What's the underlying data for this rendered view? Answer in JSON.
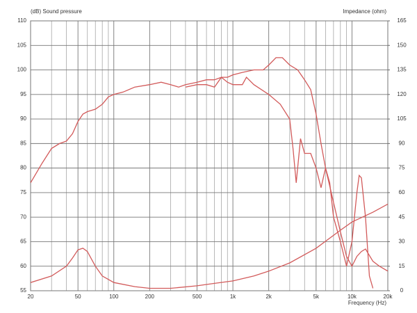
{
  "chart_data": {
    "type": "line",
    "y_label": "(dB)  Sound pressure",
    "y2_label": "Impedance  (ohm)",
    "x_label": "Frequency  (Hz)",
    "x_log": true,
    "grid": true,
    "xlim": [
      20,
      20000
    ],
    "xticks": [
      20,
      50,
      100,
      200,
      500,
      {
        "value": 1000,
        "label": "1k"
      },
      {
        "value": 2000,
        "label": "2k"
      },
      {
        "value": 5000,
        "label": "5k"
      },
      {
        "value": 10000,
        "label": "10k"
      },
      {
        "value": 20000,
        "label": "20k"
      }
    ],
    "x_minor_ticks": [
      30,
      40,
      60,
      70,
      80,
      90,
      300,
      400,
      600,
      700,
      800,
      900,
      3000,
      4000,
      6000,
      7000,
      8000,
      9000
    ],
    "ylim": [
      55,
      110
    ],
    "yticks": [
      55,
      60,
      65,
      70,
      75,
      80,
      85,
      90,
      95,
      100,
      105,
      110
    ],
    "y2lim": [
      0,
      165
    ],
    "y2ticks": [
      0,
      15,
      30,
      45,
      60,
      75,
      90,
      105,
      120,
      135,
      150,
      165
    ],
    "series": [
      {
        "color": "#d25a5a",
        "x": [
          20,
          25,
          30,
          35,
          40,
          45,
          50,
          55,
          60,
          70,
          80,
          90,
          100,
          120,
          150,
          200,
          250,
          300,
          350,
          400,
          500,
          600,
          700,
          800,
          900,
          1000,
          1200,
          1500,
          1800,
          2000,
          2300,
          2600,
          3000,
          3500,
          4000,
          4500,
          5000,
          5500,
          6000,
          7000,
          8000,
          9000,
          10000,
          11000,
          12000,
          13000,
          15000,
          17000,
          20000
        ],
        "values": [
          77,
          81,
          84,
          85,
          85.5,
          87,
          89.5,
          91,
          91.5,
          92,
          93,
          94.5,
          95,
          95.5,
          96.5,
          97,
          97.5,
          97,
          96.5,
          97,
          97.5,
          98,
          98,
          98.5,
          98.5,
          99,
          99.5,
          100,
          100,
          101,
          102.5,
          102.5,
          101,
          100,
          98,
          96,
          91,
          85,
          80,
          73,
          67,
          62,
          60,
          62,
          63,
          63.5,
          61,
          60,
          59
        ]
      },
      {
        "color": "#d25a5a",
        "x": [
          400,
          500,
          600,
          700,
          800,
          900,
          1000,
          1200,
          1300,
          1500,
          2000,
          2500,
          3000,
          3200,
          3400,
          3700,
          4000,
          4500,
          5000,
          5500,
          6000,
          6500,
          7000,
          8000,
          9000,
          10000,
          11000,
          11500,
          12000,
          13000,
          14000,
          15000
        ],
        "values": [
          96.5,
          97,
          97,
          96.5,
          98.5,
          97.5,
          97,
          97,
          98.5,
          97,
          95,
          93,
          90,
          84,
          77,
          86,
          83,
          83,
          80,
          76,
          80,
          77,
          70,
          65,
          60,
          65,
          75,
          78.5,
          78,
          70,
          58,
          55.5
        ]
      },
      {
        "color": "#d25a5a",
        "axis": "y2",
        "x": [
          20,
          30,
          40,
          45,
          50,
          55,
          60,
          70,
          80,
          100,
          150,
          200,
          300,
          500,
          700,
          1000,
          1500,
          2000,
          3000,
          5000,
          8000,
          10000,
          15000,
          20000
        ],
        "values": [
          5,
          9,
          15,
          20,
          25,
          26,
          24,
          15,
          9,
          5,
          2.5,
          1.5,
          1.5,
          3,
          4.5,
          6,
          9,
          12,
          17,
          26,
          37,
          42,
          48,
          53
        ]
      }
    ]
  }
}
